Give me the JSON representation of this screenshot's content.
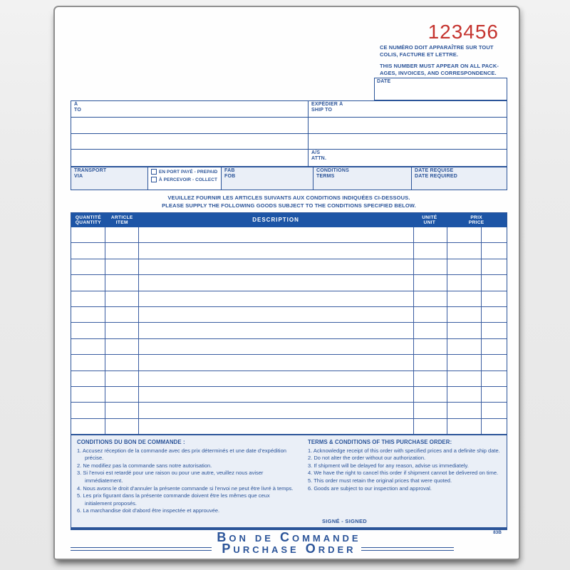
{
  "colors": {
    "navy": "#2b5499",
    "header_blue": "#1d55a6",
    "red": "#c5342f",
    "tint": "#eaeff7",
    "paper": "#fefefe",
    "background": "#ececec"
  },
  "order_number": "123456",
  "stub_code": "83B",
  "notice": {
    "fr": [
      "CE NUMÉRO DOIT APPARAÎTRE SUR TOUT",
      "COLIS, FACTURE ET LETTRE."
    ],
    "en": [
      "THIS NUMBER MUST APPEAR ON ALL PACK-",
      "AGES, INVOICES, AND CORRESPONDENCE."
    ]
  },
  "fields": {
    "date_label": "DATE",
    "to": {
      "fr": "À",
      "en": "TO"
    },
    "ship_to": {
      "fr": "EXPÉDIER À",
      "en": "SHIP TO"
    },
    "attn": {
      "fr": "A/S",
      "en": "ATTN."
    },
    "transport": {
      "fr": "TRANSPORT",
      "en": "VIA"
    },
    "prepaid_label": "EN PORT PAYÉ - PREPAID",
    "collect_label": "À PERCEVOIR - COLLECT",
    "fob": {
      "fr": "FAB",
      "en": "FOB"
    },
    "terms": {
      "fr": "CONDITIONS",
      "en": "TERMS"
    },
    "date_required": {
      "fr": "DATE REQUISE",
      "en": "DATE REQUIRED"
    }
  },
  "supply_note": {
    "fr": "VEUILLEZ FOURNIR LES ARTICLES SUIVANTS AUX CONDITIONS INDIQUÉES CI-DESSOUS.",
    "en": "PLEASE SUPPLY THE FOLLOWING GOODS SUBJECT TO THE CONDITIONS SPECIFIED BELOW."
  },
  "table": {
    "columns": [
      {
        "fr": "QUANTITÉ",
        "en": "QUANTITY"
      },
      {
        "fr": "ARTICLE",
        "en": "ITEM"
      },
      {
        "fr": "DESCRIPTION",
        "en": ""
      },
      {
        "fr": "UNITÉ",
        "en": "UNIT"
      },
      {
        "fr": "PRIX",
        "en": "PRICE"
      }
    ],
    "row_count": 13
  },
  "conditions_fr": {
    "title": "CONDITIONS DU BON DE COMMANDE :",
    "items": [
      "1. Accusez réception de la commande avec des prix déterminés et une date d’expédition précise.",
      "2. Ne modifiez pas la commande sans notre autorisation.",
      "3. Si l’envoi est retardé pour une raison ou pour une autre, veuillez nous aviser immédiatement.",
      "4. Nous avons le droit d’annuler la présente commande si l’envoi ne peut être livré à temps.",
      "5. Les prix figurant dans la présente commande doivent être les mêmes que ceux initialement proposés.",
      "6. La marchandise doit d’abord être inspectée et approuvée."
    ]
  },
  "conditions_en": {
    "title": "TERMS & CONDITIONS OF THIS PURCHASE ORDER:",
    "items": [
      "1. Acknowledge receipt of this order with specified prices and a definite ship date.",
      "2. Do not alter the order without our authorization.",
      "3. If shipment will be delayed for any reason, advise us immediately.",
      "4. We have the right to cancel this order if shipment cannot be delivered on time.",
      "5. This order must retain the original prices that were quoted.",
      "6. Goods are subject to our inspection and approval."
    ]
  },
  "signed_label": "SIGNÉ - SIGNED",
  "footer": {
    "title_fr": "Bon de Commande",
    "title_en": "Purchase Order"
  }
}
